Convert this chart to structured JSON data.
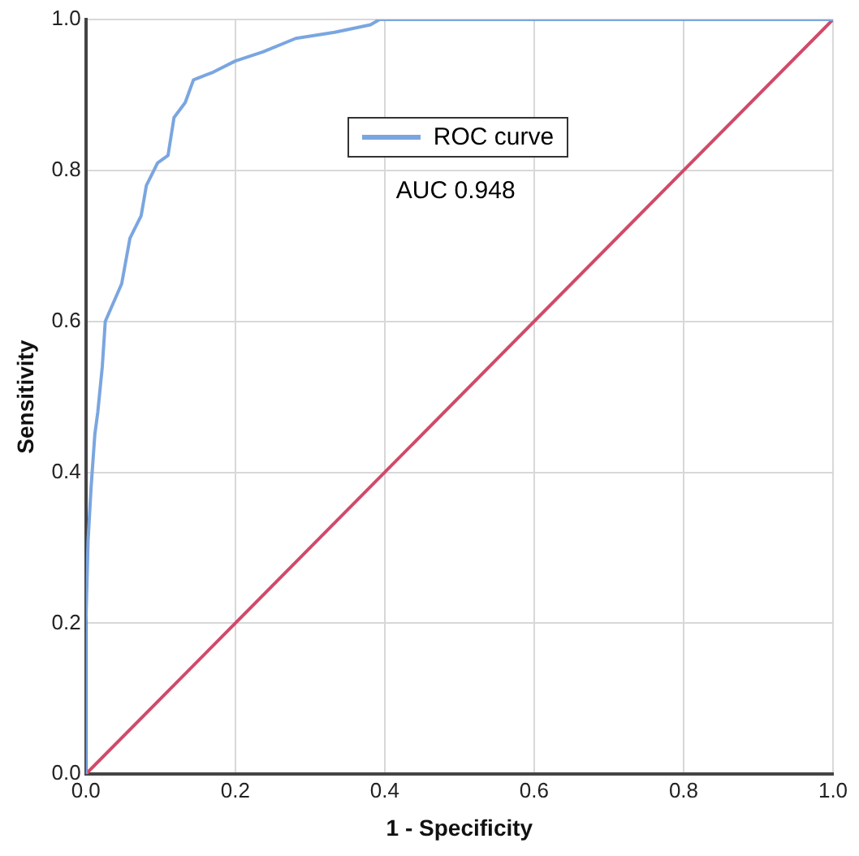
{
  "chart_data": {
    "type": "line",
    "xlabel": "1 - Specificity",
    "ylabel": "Sensitivity",
    "xlim": [
      0,
      1
    ],
    "ylim": [
      0,
      1
    ],
    "xticks": [
      {
        "value": 0,
        "label": "0.0"
      },
      {
        "value": 0.2,
        "label": "0.2"
      },
      {
        "value": 0.4,
        "label": "0.4"
      },
      {
        "value": 0.6,
        "label": "0.6"
      },
      {
        "value": 0.8,
        "label": "0.8"
      },
      {
        "value": 1,
        "label": "1.0"
      }
    ],
    "yticks": [
      {
        "value": 0,
        "label": "0.0"
      },
      {
        "value": 0.2,
        "label": "0.2"
      },
      {
        "value": 0.4,
        "label": "0.4"
      },
      {
        "value": 0.6,
        "label": "0.6"
      },
      {
        "value": 0.8,
        "label": "0.8"
      },
      {
        "value": 1,
        "label": "1.0"
      }
    ],
    "grid": true,
    "legend": "top",
    "marker": "none",
    "line_style": "solid",
    "annotations": [
      "AUC 0.948"
    ],
    "series": [
      {
        "name": "ROC curve",
        "color": "#7aa6e0",
        "x": [
          0,
          0,
          0.003,
          0.007,
          0.012,
          0.016,
          0.022,
          0.026,
          0.048,
          0.059,
          0.074,
          0.081,
          0.096,
          0.11,
          0.118,
          0.133,
          0.144,
          0.17,
          0.2,
          0.237,
          0.281,
          0.333,
          0.381,
          0.393,
          1
        ],
        "values": [
          0,
          0.2,
          0.31,
          0.38,
          0.45,
          0.48,
          0.54,
          0.6,
          0.65,
          0.71,
          0.74,
          0.78,
          0.81,
          0.82,
          0.87,
          0.89,
          0.92,
          0.93,
          0.945,
          0.957,
          0.975,
          0.983,
          0.993,
          1,
          1
        ]
      },
      {
        "color": "#d04a6a",
        "x": [
          0,
          1
        ],
        "values": [
          0,
          1
        ]
      }
    ]
  }
}
